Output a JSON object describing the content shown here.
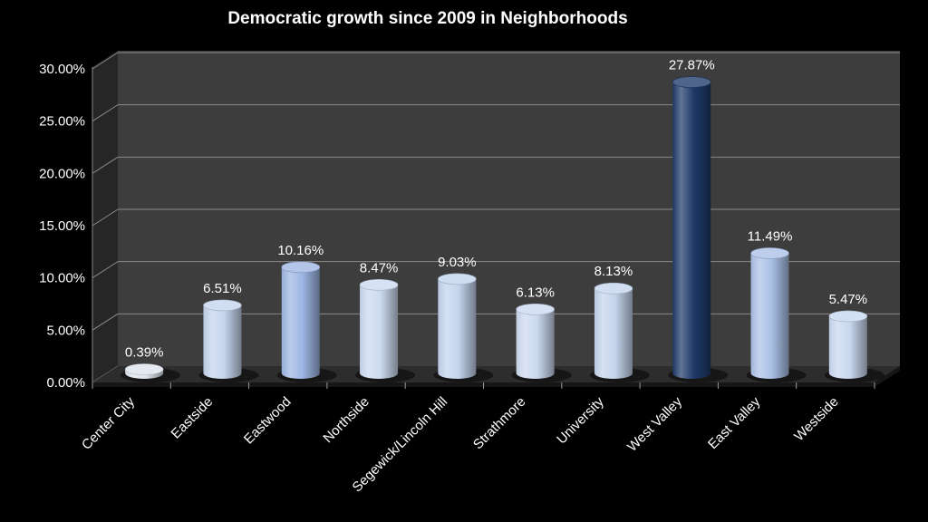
{
  "title": "Democratic growth since 2009 in Neighborhoods",
  "chart_data": {
    "type": "bar",
    "subtype": "3d-cylinder",
    "title": "Democratic growth since 2009 in Neighborhoods",
    "categories": [
      "Center City",
      "Eastside",
      "Eastwood",
      "Northside",
      "Segewick/Lincoln Hill",
      "Strathmore",
      "University",
      "West Valley",
      "East Valley",
      "Westside"
    ],
    "values": [
      0.39,
      6.51,
      10.16,
      8.47,
      9.03,
      6.13,
      8.13,
      27.87,
      11.49,
      5.47
    ],
    "value_labels": [
      "0.39%",
      "6.51%",
      "10.16%",
      "8.47%",
      "9.03%",
      "6.13%",
      "8.13%",
      "27.87%",
      "11.49%",
      "5.47%"
    ],
    "point_colors": [
      "#dde3ec",
      "#c4d4ec",
      "#9db6e3",
      "#cbd9ef",
      "#c2d3ec",
      "#cbd9ef",
      "#c4d4ec",
      "#1f3a69",
      "#a9c0e5",
      "#c8d7ef"
    ],
    "xlabel": "",
    "ylabel": "",
    "y_axis": {
      "min": 0,
      "max": 30,
      "step": 5,
      "tick_labels": [
        "0.00%",
        "5.00%",
        "10.00%",
        "15.00%",
        "20.00%",
        "25.00%",
        "30.00%"
      ]
    },
    "grid": true,
    "legend": "none",
    "colors": {
      "background": "#000000",
      "back_wall": "#3d3d3d",
      "side_wall": "#262626",
      "floor": "#2d2d2d",
      "floor_lip": "#161616",
      "gridline": "#8a8a8a",
      "tick": "#9a9a9a",
      "text": "#ffffff",
      "shadow": "#000000"
    }
  }
}
